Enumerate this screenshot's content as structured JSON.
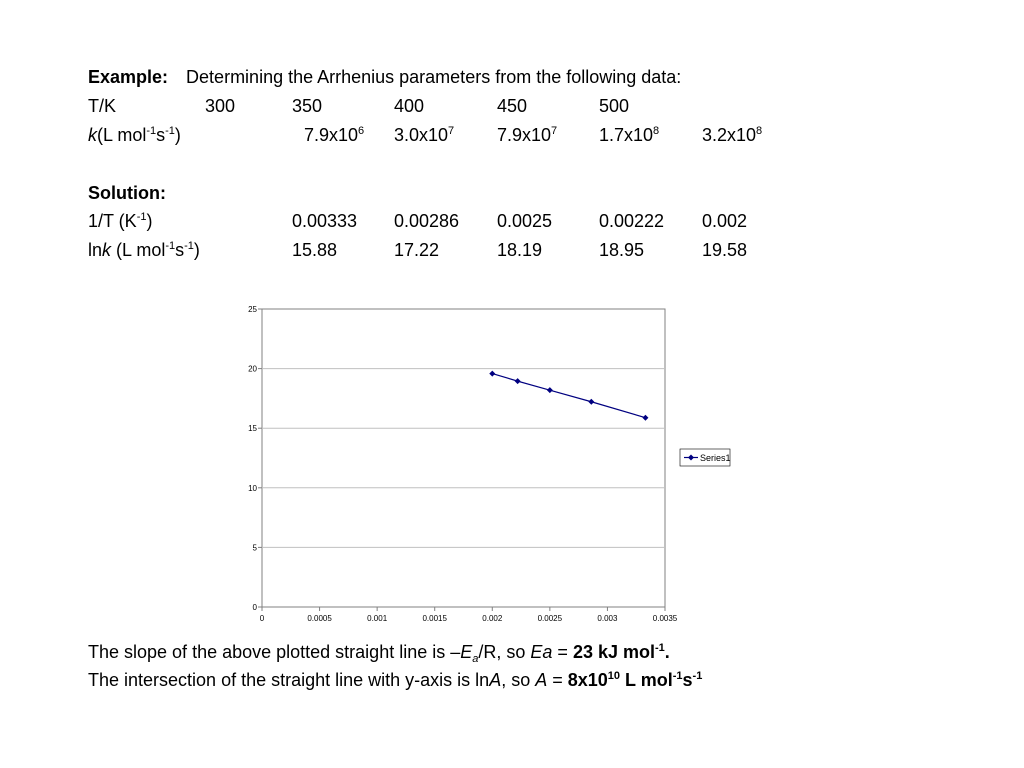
{
  "example": {
    "label": "Example:",
    "text": "Determining the Arrhenius parameters from the following data:"
  },
  "row_T": {
    "label": "T/K",
    "values": [
      "300",
      "350",
      "400",
      "450",
      "500"
    ]
  },
  "row_k": {
    "label_italic": "k",
    "label_rest": "(L mol",
    "label_sup1": "-1",
    "label_s": "s",
    "label_sup2": "-1",
    "label_close": ")",
    "values": [
      {
        "mantissa": "7.9x10",
        "exp": "6"
      },
      {
        "mantissa": "3.0x10",
        "exp": "7"
      },
      {
        "mantissa": "7.9x10",
        "exp": "7"
      },
      {
        "mantissa": "1.7x10",
        "exp": "8"
      },
      {
        "mantissa": "3.2x10",
        "exp": "8"
      }
    ]
  },
  "solution": {
    "label": "Solution:"
  },
  "row_invT": {
    "label": "1/T (K",
    "label_sup": "-1",
    "label_close": ")",
    "values": [
      "0.00333",
      "0.00286",
      "0.0025",
      "0.00222",
      "0.002"
    ]
  },
  "row_lnk": {
    "label_ln": "ln",
    "label_italic": "k",
    "label_rest": " (L mol",
    "label_sup1": "-1",
    "label_s": "s",
    "label_sup2": "-1",
    "label_close": ")",
    "values": [
      "15.88",
      "17.22",
      "18.19",
      "18.95",
      "19.58"
    ]
  },
  "chart_data": {
    "type": "scatter",
    "title": "",
    "xlabel": "",
    "ylabel": "",
    "xlim": [
      0,
      0.0035
    ],
    "ylim": [
      0,
      25
    ],
    "xticks": [
      "0",
      "0.0005",
      "0.001",
      "0.0015",
      "0.002",
      "0.0025",
      "0.003",
      "0.0035"
    ],
    "yticks": [
      "0",
      "5",
      "10",
      "15",
      "20",
      "25"
    ],
    "grid": "horizontal",
    "legend_position": "right",
    "series": [
      {
        "name": "Series1",
        "color": "#000080",
        "points": [
          {
            "x": 0.00333,
            "y": 15.88
          },
          {
            "x": 0.00286,
            "y": 17.22
          },
          {
            "x": 0.0025,
            "y": 18.19
          },
          {
            "x": 0.00222,
            "y": 18.95
          },
          {
            "x": 0.002,
            "y": 19.58
          }
        ]
      }
    ]
  },
  "conclusion": {
    "line1_pre": "The slope of the above plotted straight line is –",
    "line1_E": "E",
    "line1_sub": "a",
    "line1_mid": "/R, so ",
    "line1_Ea": "Ea",
    "line1_eq": " = ",
    "line1_val": "23 kJ mol",
    "line1_sup": "-1",
    "line1_dot": ".",
    "line2_pre": "The intersection of the straight line with y-axis is ln",
    "line2_A": "A",
    "line2_mid": ", so ",
    "line2_A2": "A",
    "line2_eq": " = ",
    "line2_val": "8x10",
    "line2_exp": "10",
    "line2_unit": " L mol",
    "line2_sup1": "-1",
    "line2_s": "s",
    "line2_sup2": "-1"
  }
}
